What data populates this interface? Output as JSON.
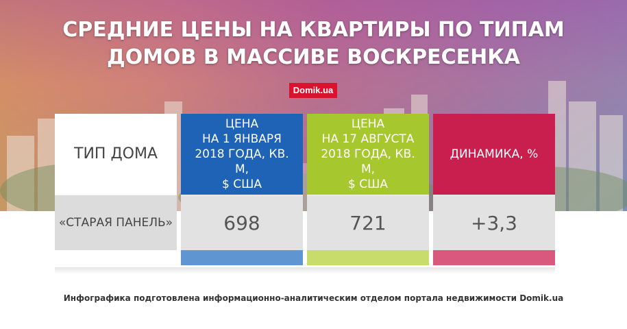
{
  "title": {
    "line1": "СРЕДНИЕ ЦЕНЫ НА КВАРТИРЫ ПО ТИПАМ",
    "line2": "ДОМОВ В МАССИВЕ ВОСКРЕСЕНКА"
  },
  "logo": "Domik.ua",
  "footer": "Инфографика подготовлена информационно-аналитическим отделом портала недвижимости Domik.ua",
  "colors": {
    "col_price_jan": "#1e63b6",
    "col_price_aug": "#a7c72e",
    "col_dynamics": "#c81f4e",
    "logo": "#d9122e"
  },
  "chart_data": {
    "type": "table",
    "columns": [
      "ТИП ДОМА",
      "ЦЕНА НА 1 ЯНВАРЯ 2018 ГОДА, КВ. М, $ США",
      "ЦЕНА НА 17 АВГУСТА 2018 ГОДА, КВ. М, $ США",
      "ДИНАМИКА, %"
    ],
    "header_lines": [
      [
        "ТИП ДОМА"
      ],
      [
        "ЦЕНА",
        "НА 1 ЯНВАРЯ",
        "2018 ГОДА, КВ. М,",
        "$ США"
      ],
      [
        "ЦЕНА",
        "НА 17 АВГУСТА",
        "2018 ГОДА, КВ. М,",
        "$ США"
      ],
      [
        "ДИНАМИКА, %"
      ]
    ],
    "rows": [
      [
        "«СТАРАЯ ПАНЕЛЬ»",
        "698",
        "721",
        "+3,3"
      ]
    ]
  }
}
